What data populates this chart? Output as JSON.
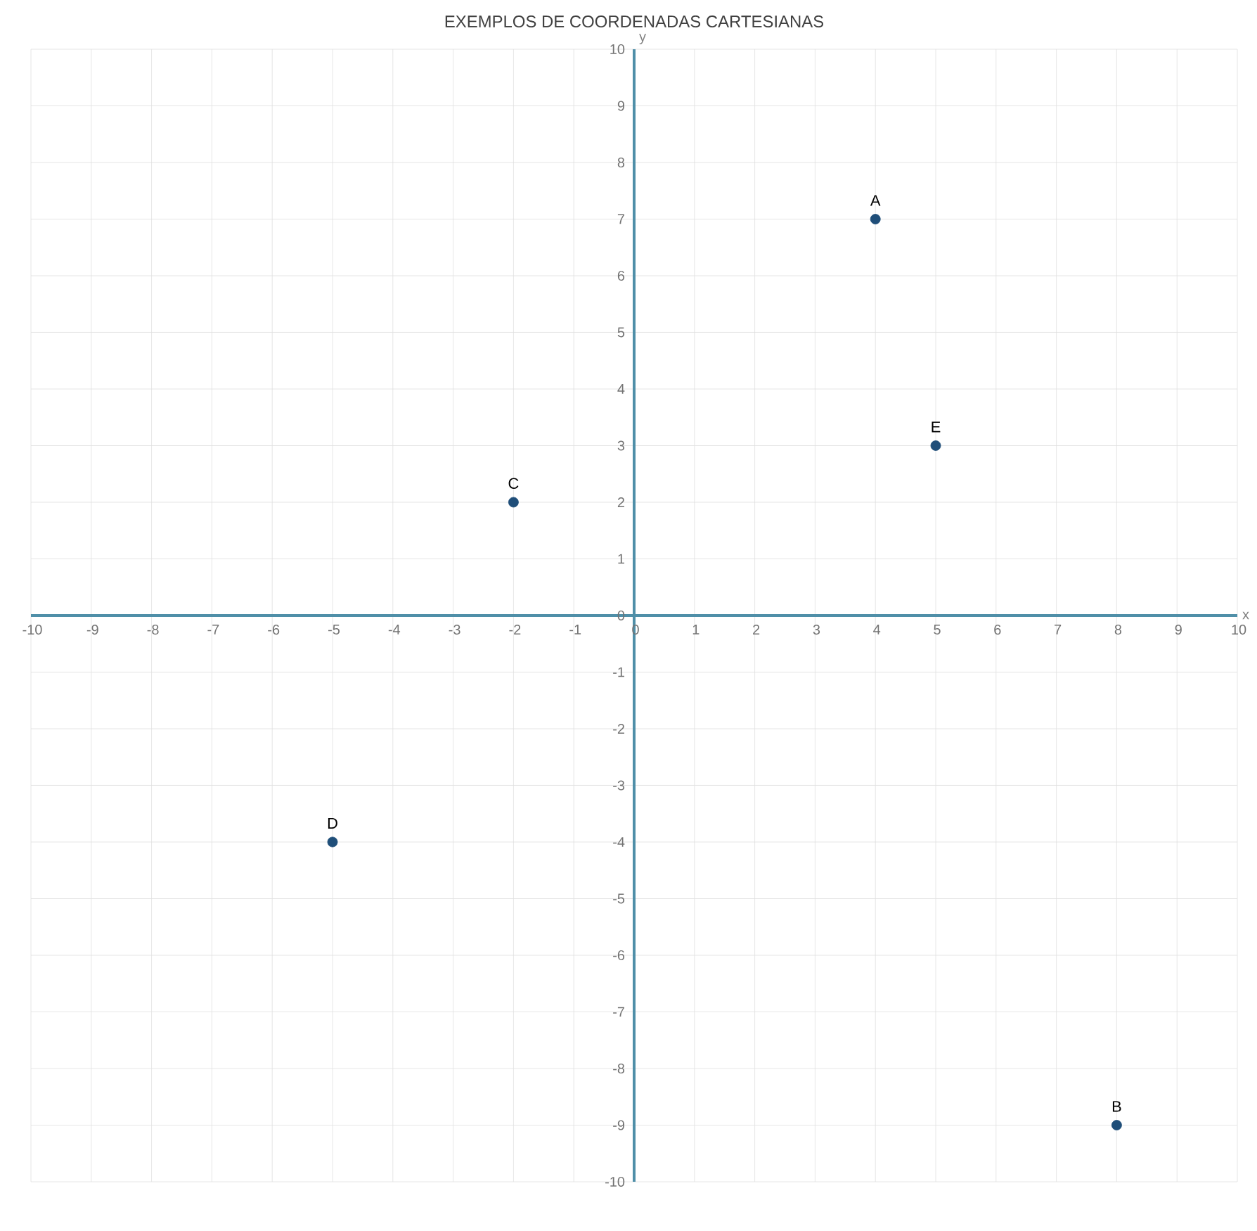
{
  "chart_data": {
    "type": "scatter",
    "title": "EXEMPLOS DE COORDENADAS CARTESIANAS",
    "xlabel": "x",
    "ylabel": "y",
    "x": [
      4,
      8,
      -2,
      -5,
      5
    ],
    "series": [
      {
        "color": "#1f4e79",
        "values": [
          7,
          -9,
          2,
          -4,
          3
        ]
      }
    ],
    "xlim": [
      -10,
      10
    ],
    "ylim": [
      -10,
      10
    ],
    "xticks": [
      -10,
      -9,
      -8,
      -7,
      -6,
      -5,
      -4,
      -3,
      -2,
      -1,
      0,
      1,
      2,
      3,
      4,
      5,
      6,
      7,
      8,
      9,
      10
    ],
    "yticks": [
      -10,
      -9,
      -8,
      -7,
      -6,
      -5,
      -4,
      -3,
      -2,
      -1,
      0,
      1,
      2,
      3,
      4,
      5,
      6,
      7,
      8,
      9,
      10
    ],
    "grid": true,
    "marker": "circle",
    "annotations": [
      {
        "text": "A",
        "x": 4,
        "y": 7
      },
      {
        "text": "B",
        "x": 8,
        "y": -9
      },
      {
        "text": "C",
        "x": -2,
        "y": 2
      },
      {
        "text": "D",
        "x": -5,
        "y": -4
      },
      {
        "text": "E",
        "x": 5,
        "y": 3
      }
    ]
  }
}
